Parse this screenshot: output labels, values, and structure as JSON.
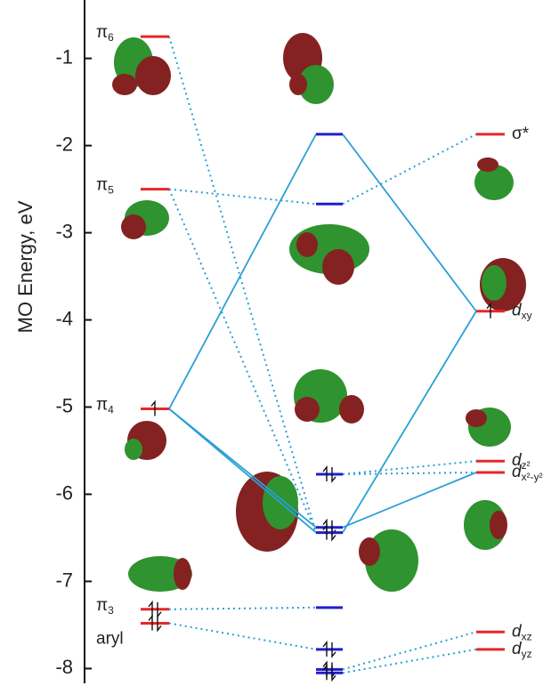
{
  "chart_data": {
    "type": "mo-diagram",
    "y_label": "MO Energy, eV",
    "ylim": [
      -8.2,
      -0.33
    ],
    "yticks": [
      -1,
      -2,
      -3,
      -4,
      -5,
      -6,
      -7,
      -8
    ],
    "connector_color": "#2a9fd6",
    "columns": [
      {
        "color": "#e8262a",
        "values": [
          -0.75,
          -2.5,
          -5.02,
          -7.32,
          -7.48
        ],
        "occupancy": [
          0,
          0,
          1,
          2,
          2
        ],
        "labels": [
          {
            "text": "π",
            "sub": "6"
          },
          {
            "text": "π",
            "sub": "5"
          },
          {
            "text": "π",
            "sub": "4"
          },
          {
            "text": "π",
            "sub": "3"
          },
          {
            "text": "aryl"
          }
        ]
      },
      {
        "color": "#1f1fcc",
        "values": [
          -1.87,
          -2.67,
          -5.77,
          -6.38,
          -6.44,
          -7.3,
          -7.78,
          -8.01,
          -8.05
        ],
        "occupancy": [
          0,
          0,
          2,
          2,
          2,
          0,
          2,
          2,
          2
        ]
      },
      {
        "color": "#e8262a",
        "values": [
          -1.87,
          -3.9,
          -5.62,
          -5.75,
          -7.58,
          -7.78
        ],
        "occupancy": [
          0,
          1,
          0,
          0,
          0,
          0
        ],
        "labels": [
          {
            "text": "σ*"
          },
          {
            "text": "d",
            "sub": "xy"
          },
          {
            "text": "d",
            "sub": "z²"
          },
          {
            "text": "d",
            "sub": "x²-y²"
          },
          {
            "text": "d",
            "sub": "xz"
          },
          {
            "text": "d",
            "sub": "yz"
          }
        ]
      }
    ]
  }
}
